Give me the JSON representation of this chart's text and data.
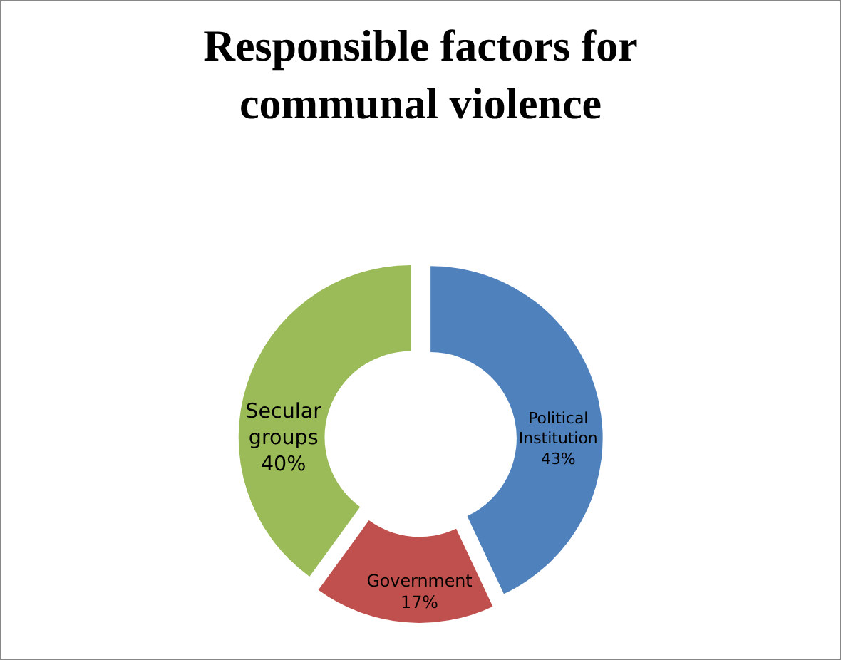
{
  "chart_data": {
    "type": "donut",
    "title": "Responsible factors for communal violence",
    "categories": [
      "Political Institution",
      "Government",
      "Secular groups"
    ],
    "values": [
      43,
      17,
      40
    ],
    "value_labels": [
      "43%",
      "17%",
      "40%"
    ],
    "colors": [
      "#4f81bd",
      "#c0504d",
      "#9bbb59"
    ],
    "legend": false
  }
}
